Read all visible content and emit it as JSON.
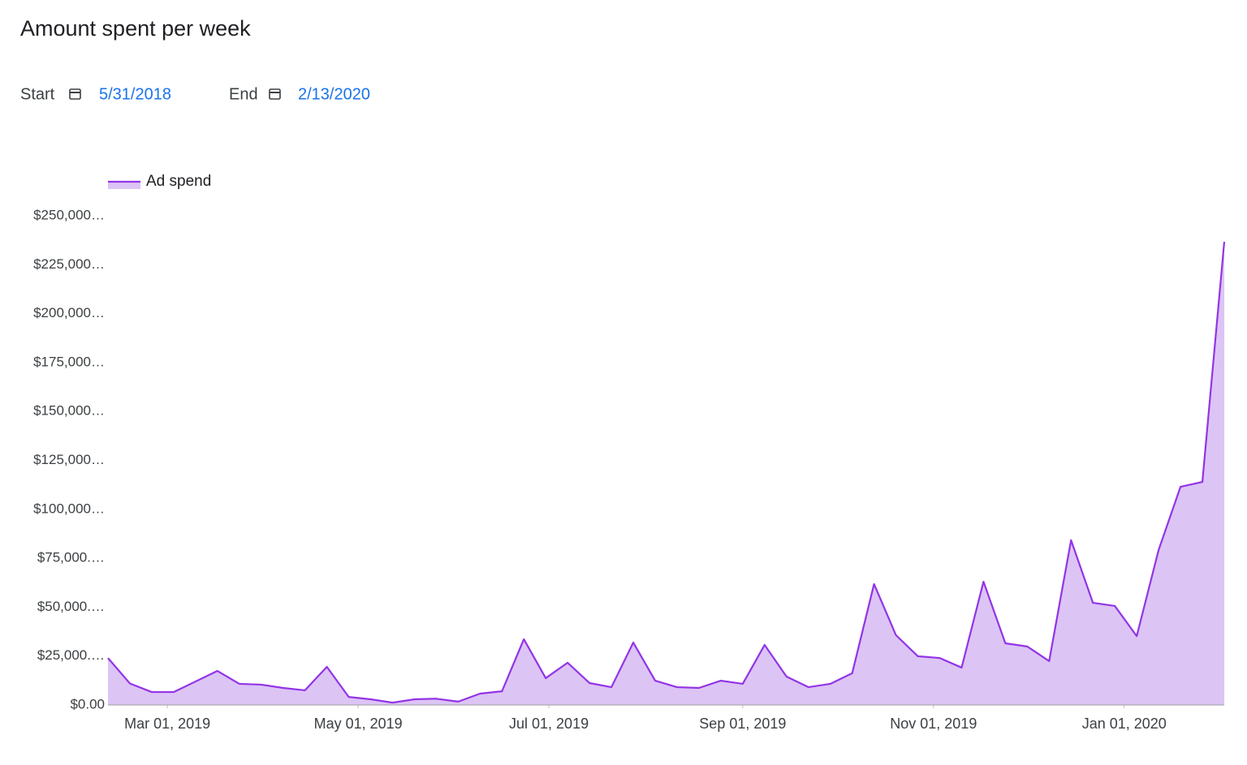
{
  "title": "Amount spent per week",
  "filters": {
    "start_label": "Start",
    "start_date": "5/31/2018",
    "end_label": "End",
    "end_date": "2/13/2020"
  },
  "chart_data": {
    "type": "area",
    "x": [
      "2019-02-10",
      "2019-02-17",
      "2019-02-24",
      "2019-03-03",
      "2019-03-10",
      "2019-03-17",
      "2019-03-24",
      "2019-03-31",
      "2019-04-07",
      "2019-04-14",
      "2019-04-21",
      "2019-04-28",
      "2019-05-05",
      "2019-05-12",
      "2019-05-19",
      "2019-05-26",
      "2019-06-02",
      "2019-06-09",
      "2019-06-16",
      "2019-06-23",
      "2019-06-30",
      "2019-07-07",
      "2019-07-14",
      "2019-07-21",
      "2019-07-28",
      "2019-08-04",
      "2019-08-11",
      "2019-08-18",
      "2019-08-25",
      "2019-09-01",
      "2019-09-08",
      "2019-09-15",
      "2019-09-22",
      "2019-09-29",
      "2019-10-06",
      "2019-10-13",
      "2019-10-20",
      "2019-10-27",
      "2019-11-03",
      "2019-11-10",
      "2019-11-17",
      "2019-11-24",
      "2019-12-01",
      "2019-12-08",
      "2019-12-15",
      "2019-12-22",
      "2019-12-29",
      "2020-01-05",
      "2020-01-12",
      "2020-01-19",
      "2020-01-26",
      "2020-02-02"
    ],
    "series": [
      {
        "name": "Ad spend",
        "color": "#9334e6",
        "fill": "#dcc4f5",
        "values": [
          24000,
          11000,
          6600,
          6600,
          12000,
          17400,
          10800,
          10400,
          8700,
          7500,
          19500,
          4100,
          2900,
          1200,
          2900,
          3200,
          1700,
          5800,
          7000,
          33600,
          13700,
          21600,
          11200,
          9100,
          31900,
          12400,
          9100,
          8700,
          12400,
          10800,
          30700,
          14500,
          9100,
          10800,
          16200,
          61800,
          35700,
          24900,
          24000,
          19100,
          63000,
          31500,
          29900,
          22400,
          84200,
          52200,
          50600,
          35200,
          79200,
          111500,
          114000,
          236700
        ]
      }
    ],
    "xlim": [
      "2019-02-10",
      "2020-02-02"
    ],
    "xticks": [
      {
        "value": "2019-03-01",
        "label": "Mar 01, 2019"
      },
      {
        "value": "2019-05-01",
        "label": "May 01, 2019"
      },
      {
        "value": "2019-07-01",
        "label": "Jul 01, 2019"
      },
      {
        "value": "2019-09-01",
        "label": "Sep 01, 2019"
      },
      {
        "value": "2019-11-01",
        "label": "Nov 01, 2019"
      },
      {
        "value": "2020-01-01",
        "label": "Jan 01, 2020"
      }
    ],
    "ylim": [
      0,
      250000
    ],
    "yticks": [
      {
        "value": 0,
        "label": "$0.00"
      },
      {
        "value": 25000,
        "label": "$25,000.…"
      },
      {
        "value": 50000,
        "label": "$50,000.…"
      },
      {
        "value": 75000,
        "label": "$75,000.…"
      },
      {
        "value": 100000,
        "label": "$100,000…"
      },
      {
        "value": 125000,
        "label": "$125,000…"
      },
      {
        "value": 150000,
        "label": "$150,000…"
      },
      {
        "value": 175000,
        "label": "$175,000…"
      },
      {
        "value": 200000,
        "label": "$200,000…"
      },
      {
        "value": 225000,
        "label": "$225,000…"
      },
      {
        "value": 250000,
        "label": "$250,000…"
      }
    ],
    "grid": false,
    "legend": "top-left"
  }
}
